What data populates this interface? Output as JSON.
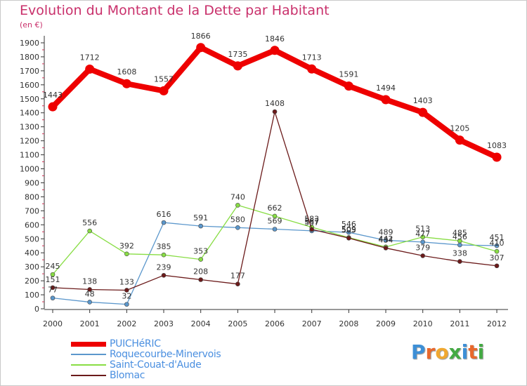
{
  "chart_data": {
    "type": "line",
    "title": "Evolution du Montant de la Dette par Habitant",
    "subtitle": "(en €)",
    "xlabel": "",
    "ylabel": "",
    "x": [
      "2000",
      "2001",
      "2002",
      "2003",
      "2004",
      "2005",
      "2006",
      "2007",
      "2008",
      "2009",
      "2010",
      "2011",
      "2012"
    ],
    "ylim": [
      0,
      1900
    ],
    "yticks": [
      0,
      100,
      200,
      300,
      400,
      500,
      600,
      700,
      800,
      900,
      1000,
      1100,
      1200,
      1300,
      1400,
      1500,
      1600,
      1700,
      1800,
      1900
    ],
    "grid": false,
    "legend_position": "bottom-left",
    "series": [
      {
        "name": "PUICHéRIC",
        "color": "#ee0000",
        "values": [
          1443,
          1712,
          1608,
          1557,
          1866,
          1735,
          1846,
          1713,
          1591,
          1494,
          1403,
          1205,
          1083
        ]
      },
      {
        "name": "Roquecourbe-Minervois",
        "color": "#5b97cc",
        "values": [
          77,
          48,
          32,
          616,
          591,
          580,
          569,
          557,
          546,
          489,
          477,
          456,
          451
        ]
      },
      {
        "name": "Saint-Couat-d'Aude",
        "color": "#88dd44",
        "values": [
          245,
          556,
          392,
          385,
          353,
          740,
          662,
          583,
          509,
          442,
          513,
          485,
          410
        ]
      },
      {
        "name": "Blomac",
        "color": "#6b1a1a",
        "values": [
          151,
          138,
          133,
          239,
          208,
          177,
          1408,
          567,
          505,
          434,
          379,
          338,
          307
        ]
      }
    ]
  },
  "brand": {
    "letters": [
      "P",
      "r",
      "o",
      "x",
      "i",
      "t",
      "i"
    ],
    "colors": [
      "#3d8fd6",
      "#e8682c",
      "#f0a830",
      "#44aa44",
      "#3d8fd6",
      "#e8682c",
      "#44aa44"
    ]
  }
}
